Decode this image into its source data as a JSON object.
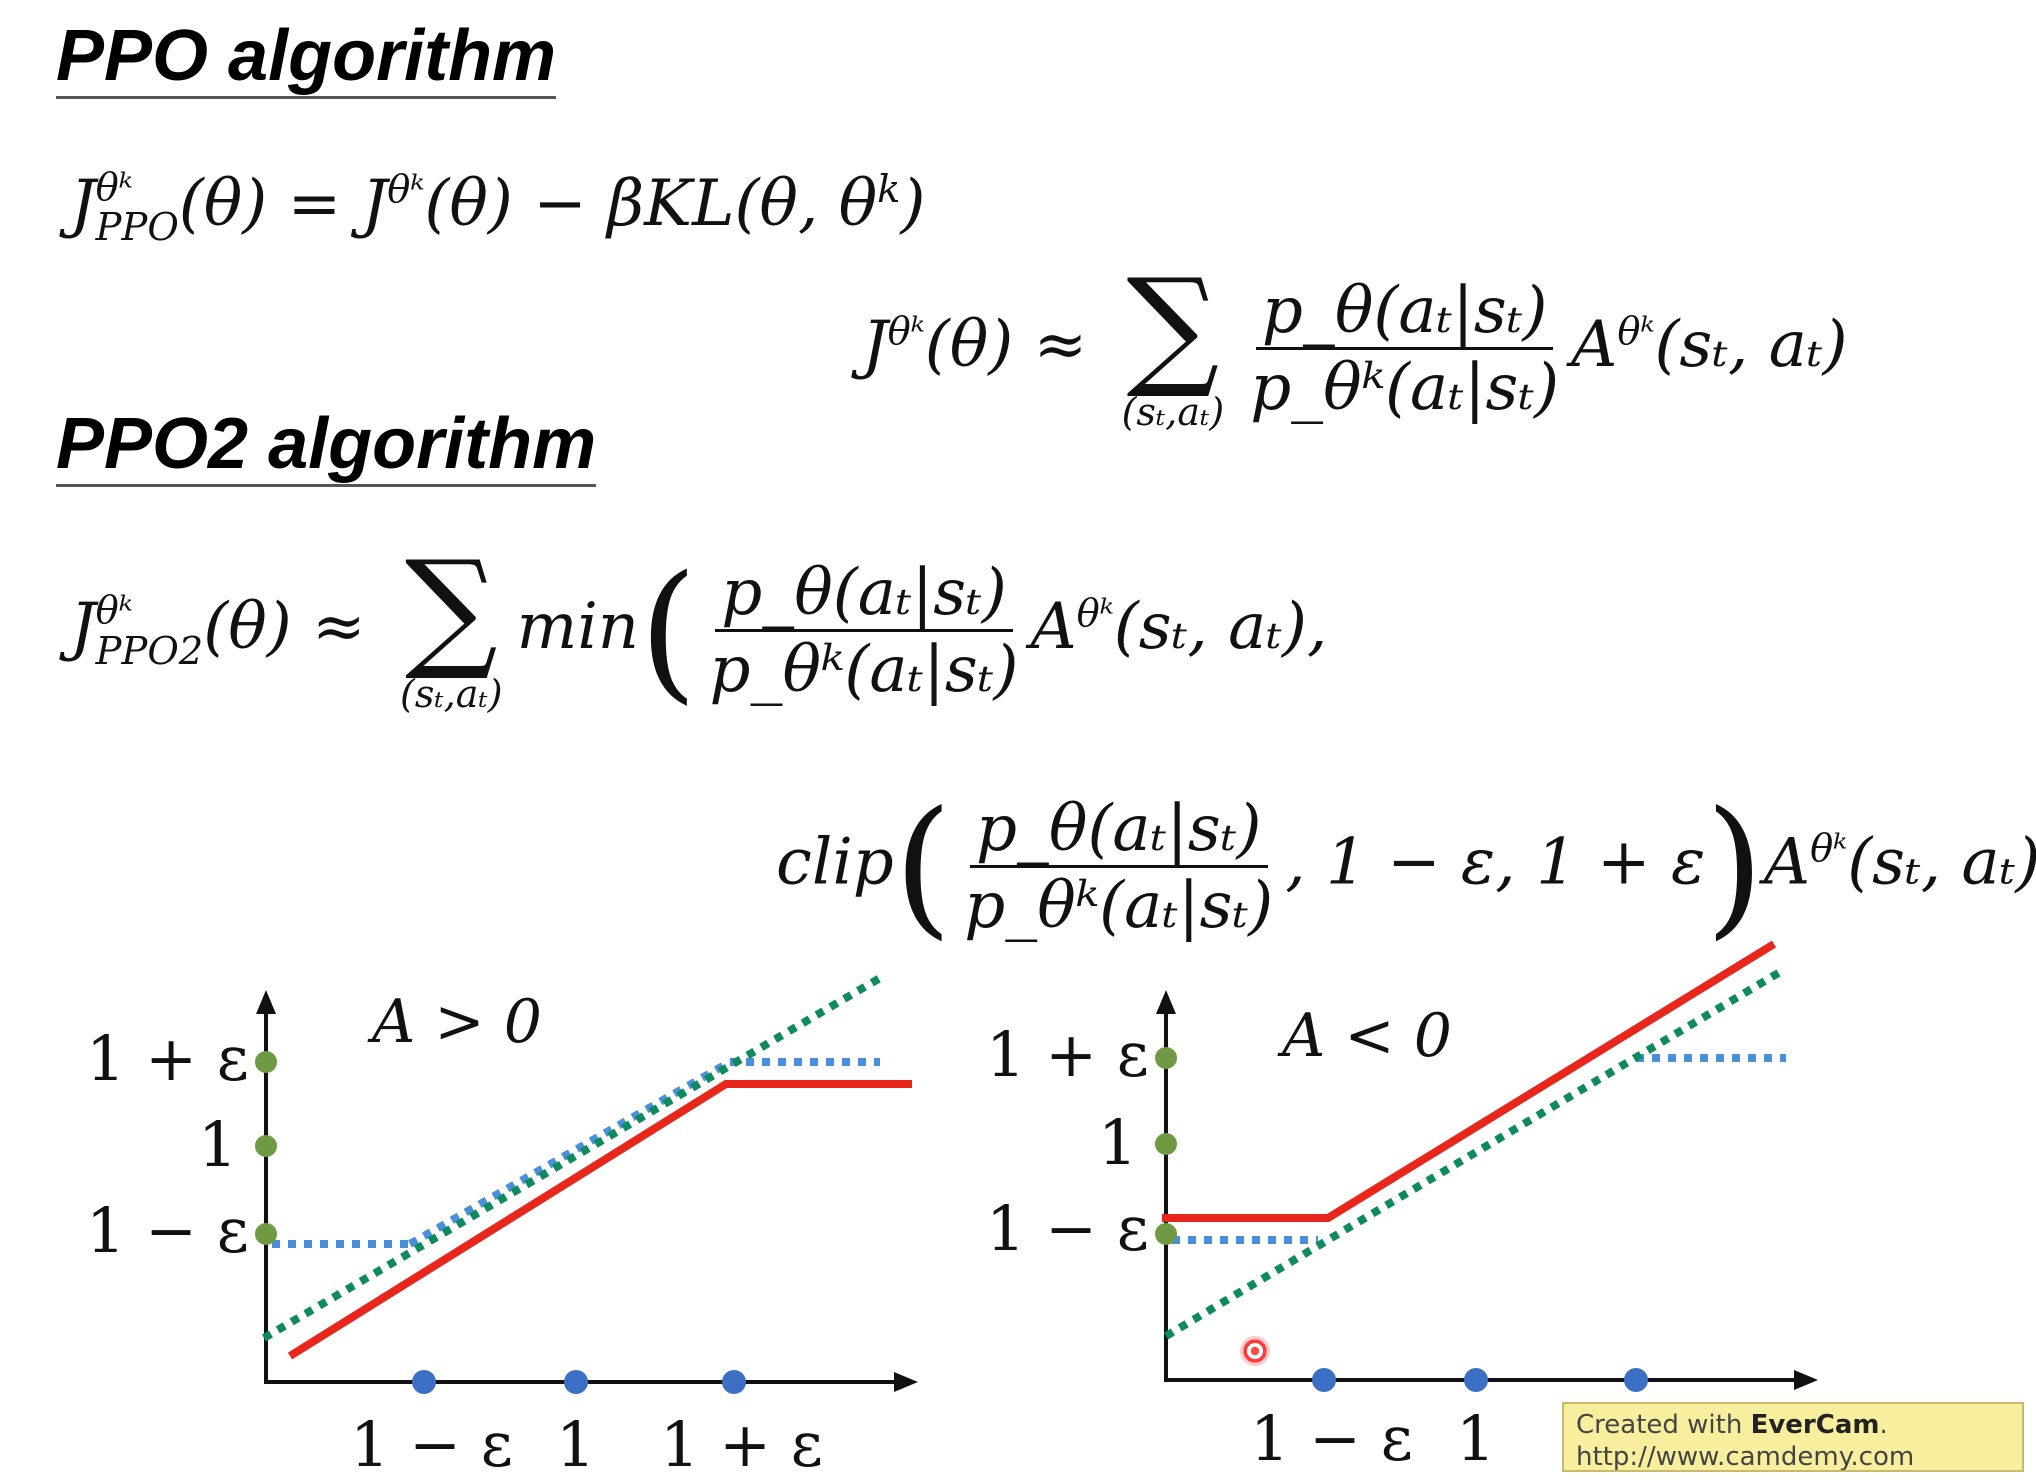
{
  "headings": {
    "ppo": "PPO algorithm",
    "ppo2": "PPO2 algorithm"
  },
  "equations": {
    "ppo_objective": {
      "lhs_J": "J",
      "lhs_sup": "θᵏ",
      "lhs_sub": "PPO",
      "lhs_arg": "(θ) = ",
      "rhs_J": "J",
      "rhs_sup": "θᵏ",
      "rhs_rest": "(θ) − βKL(θ, θ",
      "rhs_kl_sup": "k",
      "rhs_close": ")"
    },
    "surrogate": {
      "J": "J",
      "sup": "θᵏ",
      "arg": "(θ) ≈",
      "sum_symbol": "∑",
      "sum_sub": "(sₜ,aₜ)",
      "numerator": "p_θ(aₜ|sₜ)",
      "denominator": "p_θᵏ(aₜ|sₜ)",
      "A": "A",
      "A_sup": "θᵏ",
      "A_args": "(sₜ, aₜ)"
    },
    "ppo2_line1": {
      "J": "J",
      "sup": "θᵏ",
      "sub": "PPO2",
      "arg": "(θ) ≈",
      "sum_symbol": "∑",
      "sum_sub": "(sₜ,aₜ)",
      "min": "min",
      "open": "(",
      "numerator": "p_θ(aₜ|sₜ)",
      "denominator": "p_θᵏ(aₜ|sₜ)",
      "A": "A",
      "A_sup": "θᵏ",
      "A_args": "(sₜ, aₜ),"
    },
    "ppo2_line2": {
      "clip": "clip",
      "open": "(",
      "numerator": "p_θ(aₜ|sₜ)",
      "denominator": "p_θᵏ(aₜ|sₜ)",
      "range": ", 1 − ε, 1 + ε",
      "close": ")",
      "A": "A",
      "A_sup": "θᵏ",
      "A_args": "(sₜ, aₜ)",
      "outer_close": ")"
    }
  },
  "plots": {
    "left": {
      "condition": "A > 0",
      "y_ticks": [
        "1 + ε",
        "1",
        "1 − ε"
      ],
      "x_ticks": [
        "1 − ε",
        "1",
        "1 + ε"
      ]
    },
    "right": {
      "condition": "A < 0",
      "y_ticks": [
        "1 + ε",
        "1",
        "1 − ε"
      ],
      "x_ticks": [
        "1 − ε",
        "1"
      ]
    }
  },
  "colors": {
    "clipped_objective": "#e8261c",
    "ratio_line": "#0f8a5f",
    "clip_line": "#4a8fd9",
    "y_marker": "#6f9a43",
    "x_marker": "#3a6fc4",
    "axis": "#111111"
  },
  "watermark": {
    "line1_prefix": "Created with ",
    "line1_brand": "EverCam",
    "line1_suffix": ".",
    "line2": "http://www.camdemy.com"
  }
}
